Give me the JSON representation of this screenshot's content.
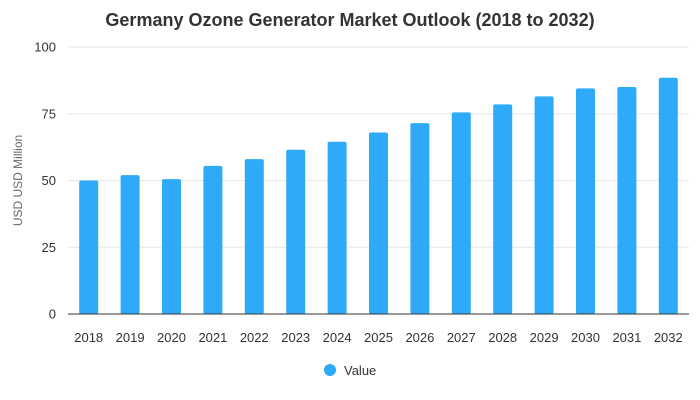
{
  "chart_data": {
    "type": "bar",
    "title": "Germany Ozone Generator Market Outlook (2018 to 2032)",
    "xlabel": "",
    "ylabel": "USD USD Million",
    "categories": [
      "2018",
      "2019",
      "2020",
      "2021",
      "2022",
      "2023",
      "2024",
      "2025",
      "2026",
      "2027",
      "2028",
      "2029",
      "2030",
      "2031",
      "2032"
    ],
    "series": [
      {
        "name": "Value",
        "values": [
          50,
          52,
          50.5,
          55.5,
          58,
          61.5,
          64.5,
          68,
          71.5,
          75.5,
          78.5,
          81.5,
          84.5,
          85,
          88.5
        ]
      }
    ],
    "ylim": [
      0,
      100
    ],
    "yticks": [
      0,
      25,
      50,
      75,
      100
    ],
    "grid": true,
    "legend_position": "bottom-center",
    "bar_color": "#2eaaf8",
    "grid_color": "#e6e6e6",
    "axis_color": "#333333"
  }
}
